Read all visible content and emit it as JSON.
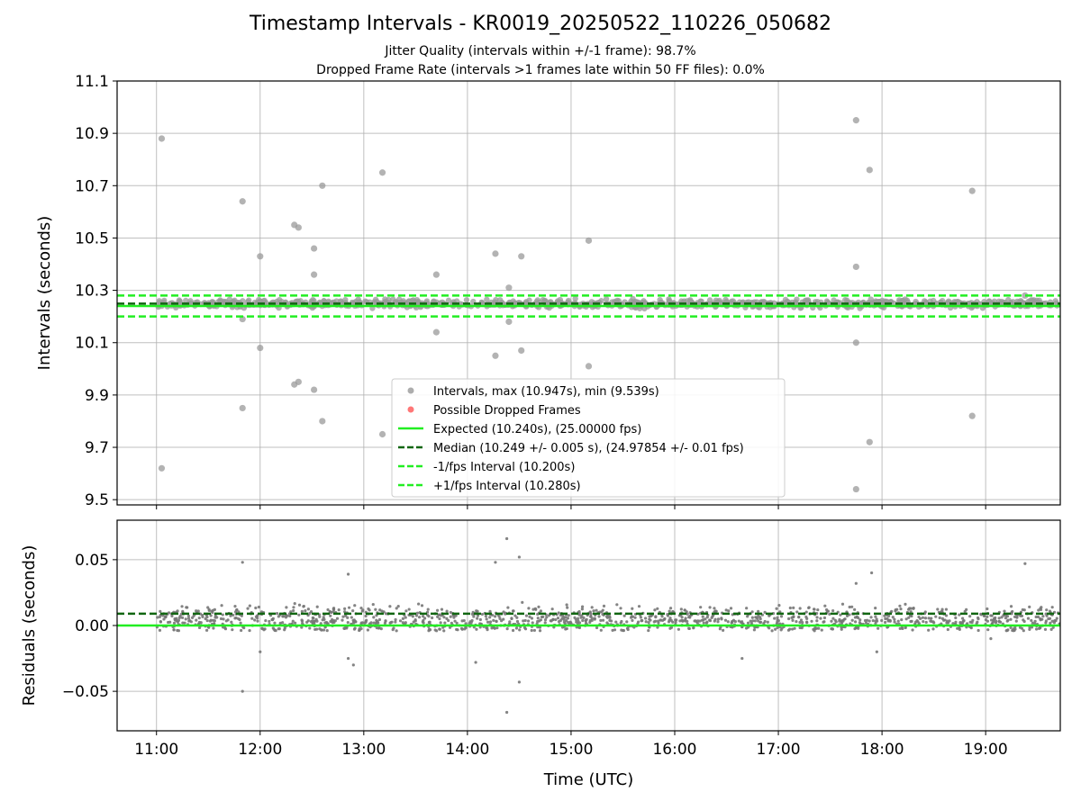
{
  "figure": {
    "title": "Timestamp Intervals - KR0019_20250522_110226_050682",
    "subtitle_line1": "Jitter Quality (intervals within +/-1 frame): 98.7%",
    "subtitle_line2": "Dropped Frame Rate (intervals >1 frames late within 50 FF files): 0.0%"
  },
  "colors": {
    "points": "#999999",
    "residual_points": "#777777",
    "dropped": "#ff5555",
    "expected": "#22ee22",
    "median": "#116611",
    "fps_bounds": "#22ee22",
    "grid": "#b0b0b0"
  },
  "chart_data": [
    {
      "type": "scatter",
      "panel": "intervals",
      "ylabel": "Intervals (seconds)",
      "xlabel": "",
      "x_unit": "hours UTC",
      "xlim": [
        10.62,
        19.72
      ],
      "ylim": [
        9.48,
        11.1
      ],
      "yticks": [
        9.5,
        9.7,
        9.9,
        10.1,
        10.3,
        10.5,
        10.7,
        10.9,
        11.1
      ],
      "ytick_labels": [
        "9.5",
        "9.7",
        "9.9",
        "10.1",
        "10.3",
        "10.5",
        "10.7",
        "10.9",
        "11.1"
      ],
      "xticks": [
        11,
        12,
        13,
        14,
        15,
        16,
        17,
        18,
        19
      ],
      "grid": true,
      "legend_position": "lower-center",
      "legend": [
        {
          "label": "Intervals, max (10.947s), min (9.539s)",
          "kind": "dot",
          "color_key": "points"
        },
        {
          "label": "Possible Dropped Frames",
          "kind": "dot",
          "color_key": "dropped"
        },
        {
          "label": "Expected (10.240s), (25.00000 fps)",
          "kind": "solid",
          "color_key": "expected"
        },
        {
          "label": "Median (10.249 +/- 0.005 s), (24.97854 +/- 0.01 fps)",
          "kind": "dashed",
          "color_key": "median"
        },
        {
          "label": "-1/fps Interval (10.200s)",
          "kind": "dashed",
          "color_key": "fps_bounds"
        },
        {
          "label": "+1/fps Interval (10.280s)",
          "kind": "dashed",
          "color_key": "fps_bounds"
        }
      ],
      "reference_lines": {
        "expected": 10.24,
        "median": 10.249,
        "minus_1fps": 10.2,
        "plus_1fps": 10.28
      },
      "band": {
        "center": 10.249,
        "spread": 0.022,
        "x_start": 11.0,
        "x_end": 19.72
      },
      "outliers": [
        [
          11.05,
          10.88
        ],
        [
          11.05,
          9.62
        ],
        [
          11.83,
          10.64
        ],
        [
          11.83,
          10.19
        ],
        [
          11.83,
          9.85
        ],
        [
          12.0,
          10.43
        ],
        [
          12.0,
          10.08
        ],
        [
          12.33,
          10.55
        ],
        [
          12.37,
          10.54
        ],
        [
          12.33,
          9.94
        ],
        [
          12.37,
          9.95
        ],
        [
          12.52,
          10.46
        ],
        [
          12.52,
          10.36
        ],
        [
          12.6,
          10.7
        ],
        [
          12.52,
          9.92
        ],
        [
          12.6,
          9.8
        ],
        [
          13.18,
          10.75
        ],
        [
          13.18,
          9.75
        ],
        [
          13.7,
          10.36
        ],
        [
          13.7,
          10.14
        ],
        [
          14.27,
          10.44
        ],
        [
          14.27,
          10.05
        ],
        [
          14.4,
          10.31
        ],
        [
          14.4,
          10.18
        ],
        [
          14.52,
          10.43
        ],
        [
          14.52,
          10.07
        ],
        [
          15.17,
          10.49
        ],
        [
          15.17,
          10.01
        ],
        [
          17.75,
          10.95
        ],
        [
          17.75,
          10.39
        ],
        [
          17.75,
          10.1
        ],
        [
          17.75,
          9.54
        ],
        [
          17.88,
          10.76
        ],
        [
          17.88,
          9.72
        ],
        [
          18.87,
          10.68
        ],
        [
          18.87,
          9.82
        ],
        [
          19.38,
          10.28
        ]
      ]
    },
    {
      "type": "scatter",
      "panel": "residuals",
      "ylabel": "Residuals (seconds)",
      "xlabel": "Time (UTC)",
      "x_unit": "hours UTC",
      "xlim": [
        10.62,
        19.72
      ],
      "ylim": [
        -0.08,
        0.08
      ],
      "yticks": [
        -0.05,
        0.0,
        0.05
      ],
      "ytick_labels": [
        "−0.05",
        "0.00",
        "0.05"
      ],
      "xticks": [
        11,
        12,
        13,
        14,
        15,
        16,
        17,
        18,
        19
      ],
      "xtick_labels": [
        "11:00",
        "12:00",
        "13:00",
        "14:00",
        "15:00",
        "16:00",
        "17:00",
        "18:00",
        "19:00"
      ],
      "grid": true,
      "reference_lines": {
        "expected": 0.0,
        "median": 0.009
      },
      "band": {
        "center": 0.007,
        "spread": 0.012,
        "x_start": 11.0,
        "x_end": 19.72
      },
      "outliers": [
        [
          11.83,
          0.048
        ],
        [
          11.83,
          -0.05
        ],
        [
          12.0,
          -0.02
        ],
        [
          12.85,
          0.039
        ],
        [
          12.85,
          -0.025
        ],
        [
          12.9,
          -0.03
        ],
        [
          14.08,
          -0.028
        ],
        [
          14.27,
          0.048
        ],
        [
          14.38,
          0.066
        ],
        [
          14.38,
          -0.066
        ],
        [
          14.5,
          0.052
        ],
        [
          14.5,
          -0.043
        ],
        [
          17.75,
          0.032
        ],
        [
          17.9,
          0.04
        ],
        [
          17.95,
          -0.02
        ],
        [
          19.38,
          0.047
        ],
        [
          16.65,
          -0.025
        ],
        [
          19.05,
          -0.01
        ]
      ]
    }
  ]
}
